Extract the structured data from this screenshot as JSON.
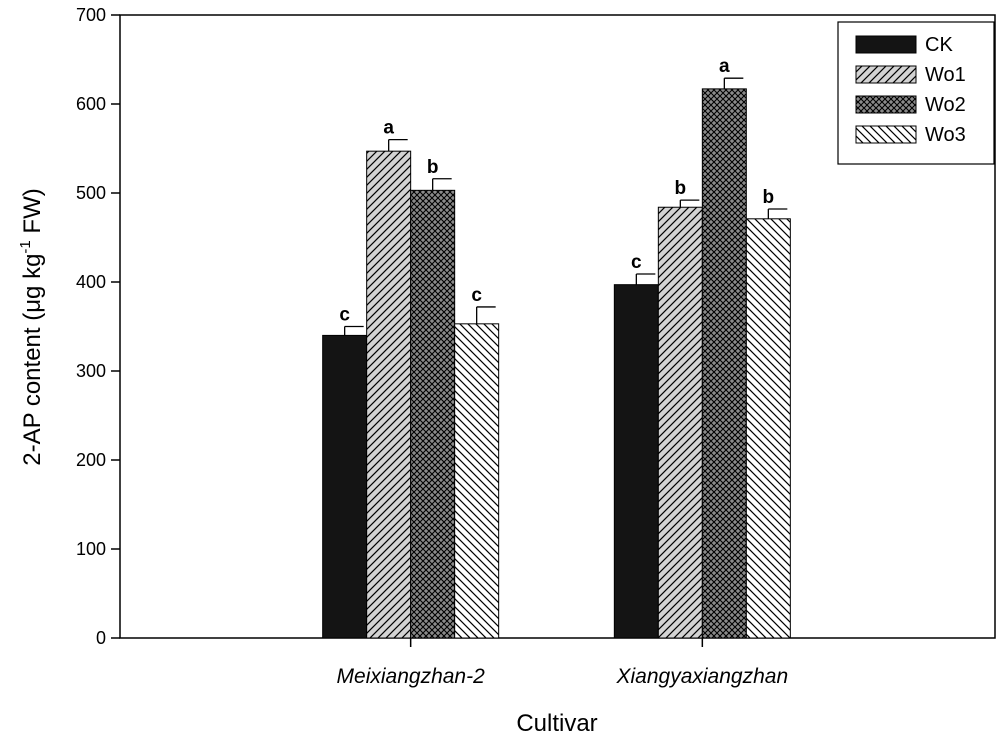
{
  "chart_data": {
    "type": "bar",
    "title": "",
    "xlabel": "Cultivar",
    "ylabel_main": "2-AP content (μg kg",
    "ylabel_sup": "-1",
    "ylabel_tail": " FW)",
    "ylim": [
      0,
      700
    ],
    "yticks": [
      0,
      100,
      200,
      300,
      400,
      500,
      600,
      700
    ],
    "ytick_labels": [
      "0",
      "100",
      "200",
      "300",
      "400",
      "500",
      "600",
      "700"
    ],
    "categories": [
      "Meixiangzhan-2",
      "Xiangyaxiangzhan"
    ],
    "series": [
      {
        "name": "CK",
        "values": [
          340,
          397
        ],
        "errors": [
          10,
          12
        ],
        "letters": [
          "c",
          "c"
        ],
        "pattern": "solid"
      },
      {
        "name": "Wo1",
        "values": [
          547,
          484
        ],
        "errors": [
          13,
          8
        ],
        "letters": [
          "a",
          "b"
        ],
        "pattern": "diag-fwd"
      },
      {
        "name": "Wo2",
        "values": [
          503,
          617
        ],
        "errors": [
          13,
          12
        ],
        "letters": [
          "b",
          "a"
        ],
        "pattern": "crosshatch"
      },
      {
        "name": "Wo3",
        "values": [
          353,
          471
        ],
        "errors": [
          19,
          11
        ],
        "letters": [
          "c",
          "b"
        ],
        "pattern": "diag-back"
      }
    ],
    "legend_position": "top-right"
  }
}
